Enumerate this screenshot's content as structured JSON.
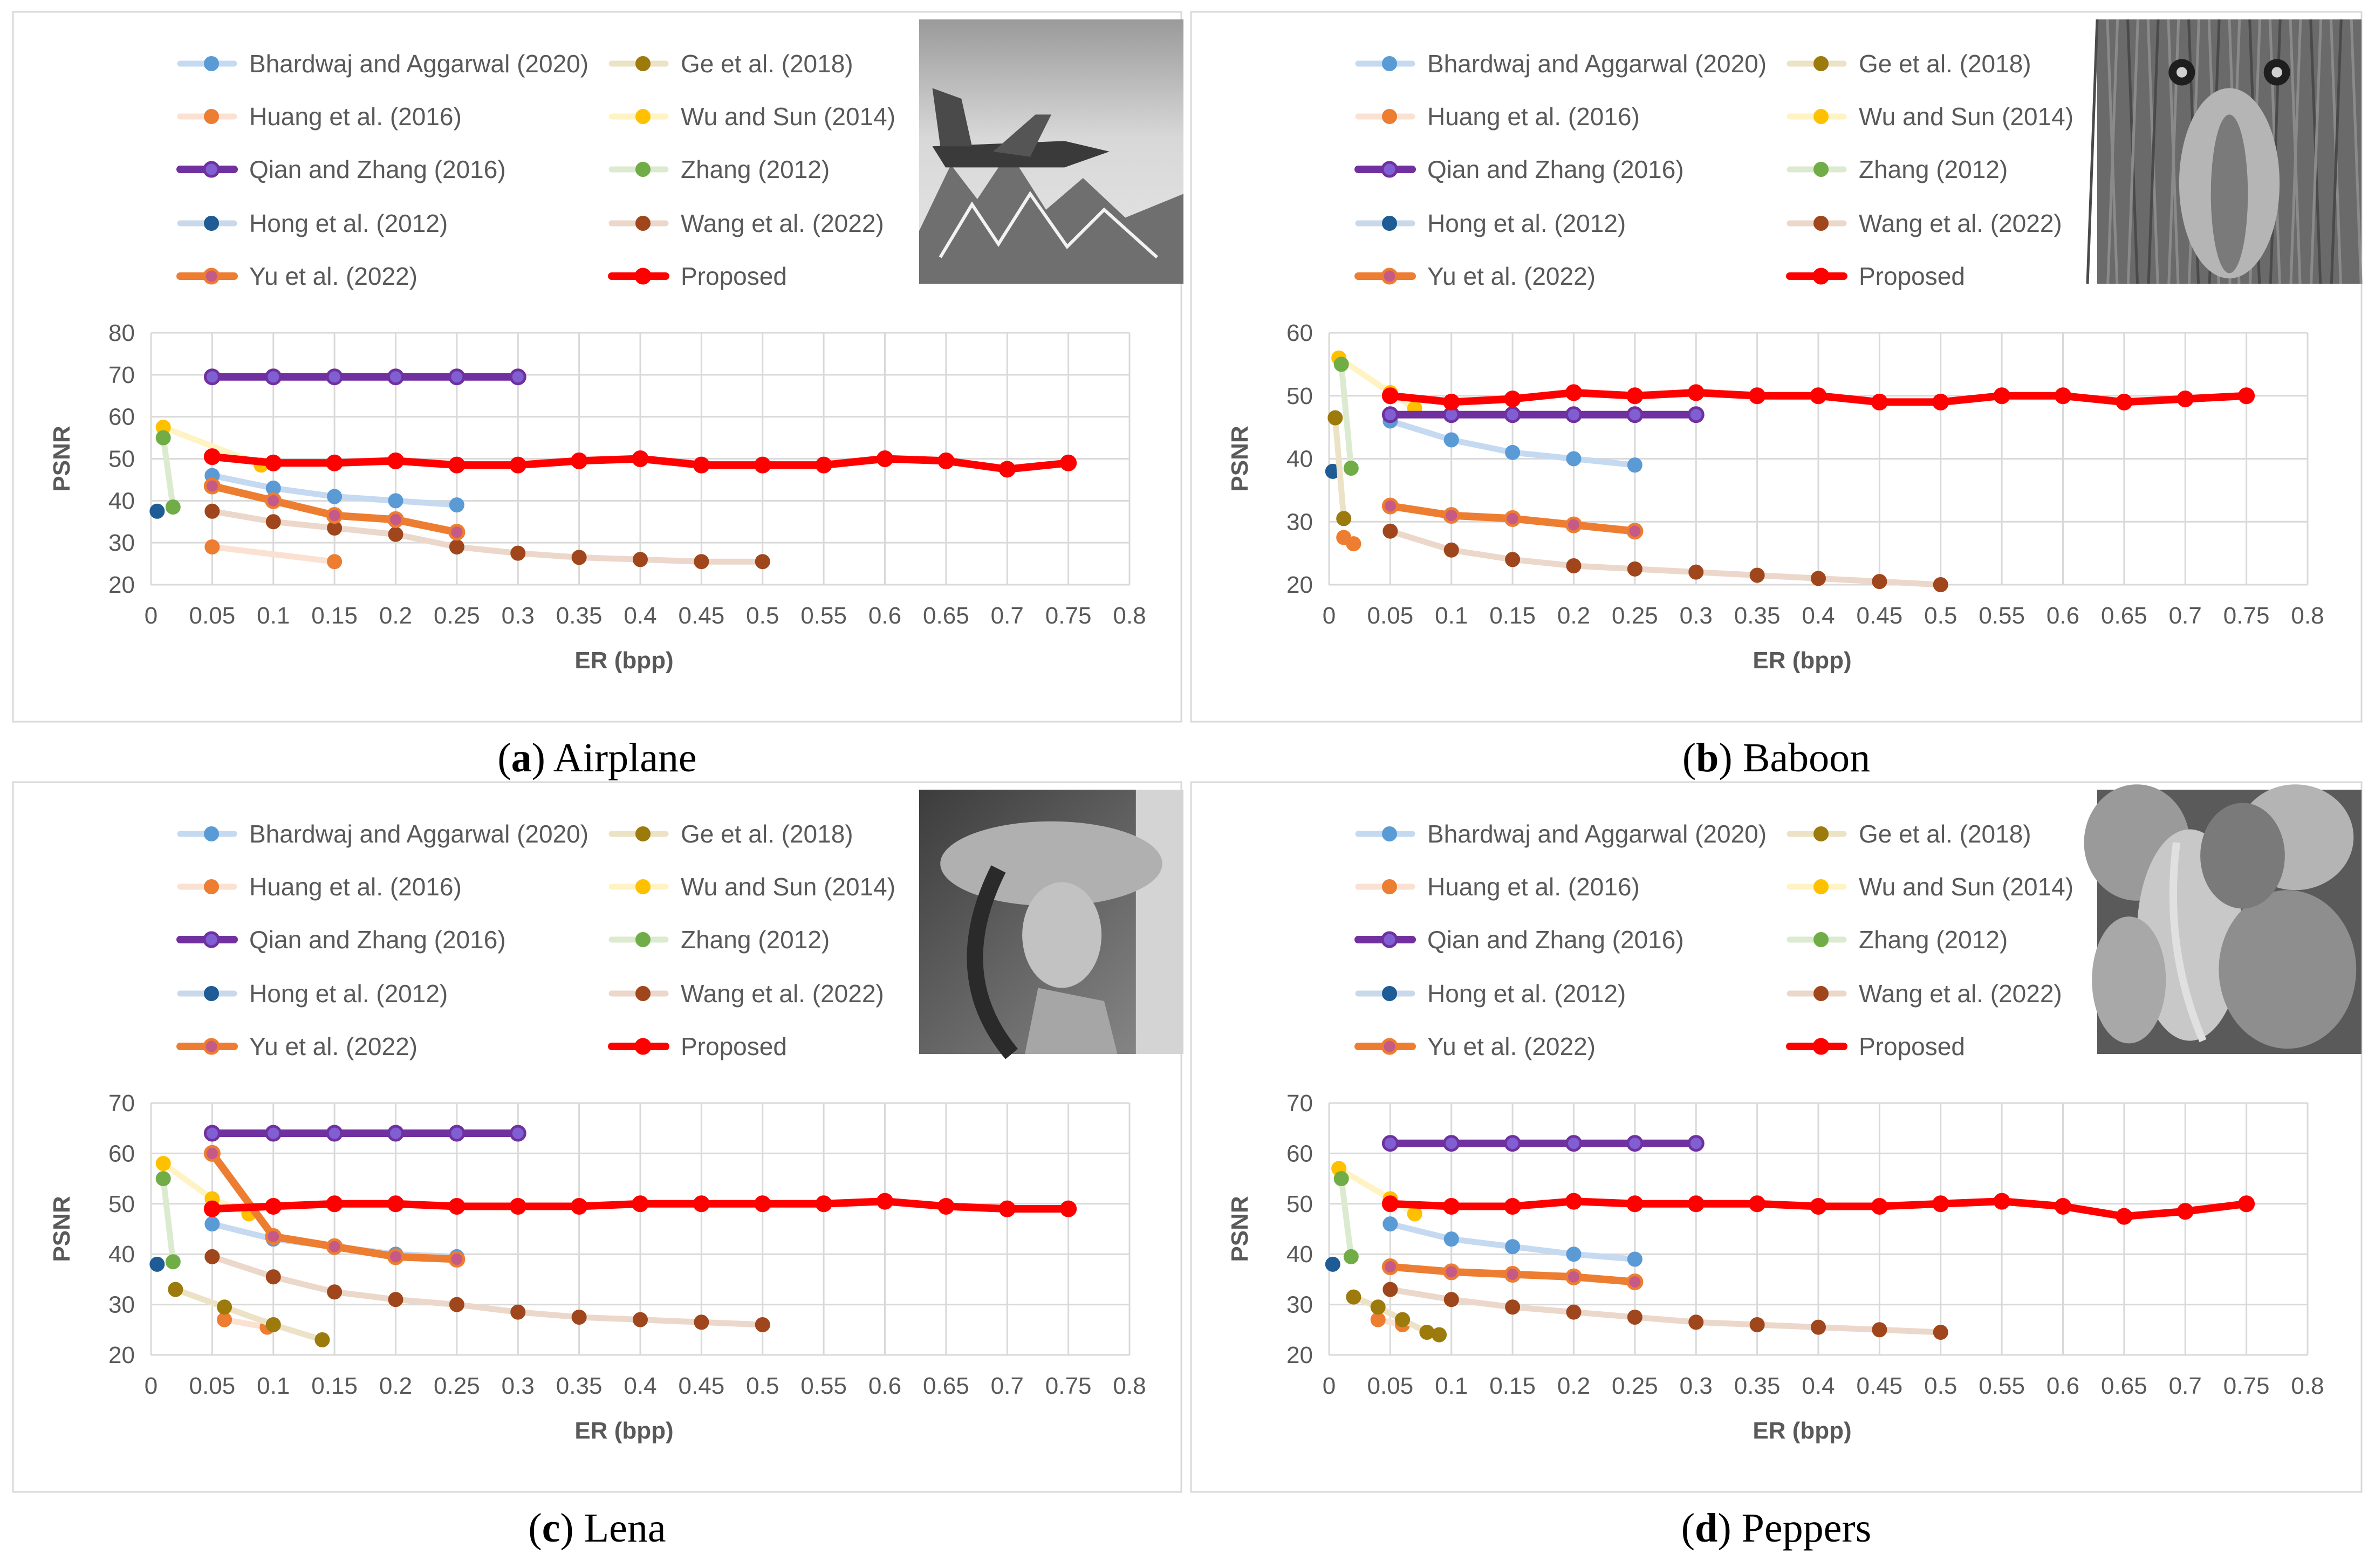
{
  "chart_data": [
    {
      "type": "line",
      "caption_label": "a",
      "caption_text": "Airplane",
      "thumbnail": "airplane-image",
      "xlabel": "ER (bpp)",
      "ylabel": "PSNR",
      "xlim": [
        0,
        0.8
      ],
      "ylim": [
        20,
        80
      ],
      "x_ticks": [
        "0",
        "0.05",
        "0.1",
        "0.15",
        "0.2",
        "0.25",
        "0.3",
        "0.35",
        "0.4",
        "0.45",
        "0.5",
        "0.55",
        "0.6",
        "0.65",
        "0.7",
        "0.75",
        "0.8"
      ],
      "y_ticks": [
        "20",
        "30",
        "40",
        "50",
        "60",
        "70",
        "80"
      ],
      "series": [
        {
          "name": "Bhardwaj and Aggarwal (2020)",
          "x": [
            0.05,
            0.1,
            0.15,
            0.2,
            0.25
          ],
          "y": [
            46,
            43,
            41,
            40,
            39
          ]
        },
        {
          "name": "Huang et al. (2016)",
          "x": [
            0.05,
            0.15
          ],
          "y": [
            29,
            25.5
          ]
        },
        {
          "name": "Qian and Zhang (2016)",
          "x": [
            0.05,
            0.1,
            0.15,
            0.2,
            0.25,
            0.3
          ],
          "y": [
            69.5,
            69.5,
            69.5,
            69.5,
            69.5,
            69.5
          ]
        },
        {
          "name": "Hong et al. (2012)",
          "x": [
            0.005
          ],
          "y": [
            37.5
          ]
        },
        {
          "name": "Yu et al. (2022)",
          "x": [
            0.05,
            0.1,
            0.15,
            0.2,
            0.25
          ],
          "y": [
            43.5,
            40,
            36.5,
            35.5,
            32.5
          ]
        },
        {
          "name": "Ge et al. (2018)",
          "x": [],
          "y": []
        },
        {
          "name": "Wu and Sun (2014)",
          "x": [
            0.01,
            0.09
          ],
          "y": [
            57.5,
            48.5
          ]
        },
        {
          "name": "Zhang (2012)",
          "x": [
            0.01,
            0.018
          ],
          "y": [
            55,
            38.5
          ]
        },
        {
          "name": "Wang et al. (2022)",
          "x": [
            0.05,
            0.1,
            0.15,
            0.2,
            0.25,
            0.3,
            0.35,
            0.4,
            0.45,
            0.5
          ],
          "y": [
            37.5,
            35,
            33.5,
            32,
            29,
            27.5,
            26.5,
            26,
            25.5,
            25.5
          ]
        },
        {
          "name": "Proposed",
          "x": [
            0.05,
            0.1,
            0.15,
            0.2,
            0.25,
            0.3,
            0.35,
            0.4,
            0.45,
            0.5,
            0.55,
            0.6,
            0.65,
            0.7,
            0.75
          ],
          "y": [
            50.5,
            49,
            49,
            49.5,
            48.5,
            48.5,
            49.5,
            50,
            48.5,
            48.5,
            48.5,
            50,
            49.5,
            47.5,
            49
          ]
        }
      ]
    },
    {
      "type": "line",
      "caption_label": "b",
      "caption_text": "Baboon",
      "thumbnail": "baboon-image",
      "xlabel": "ER (bpp)",
      "ylabel": "PSNR",
      "xlim": [
        0,
        0.8
      ],
      "ylim": [
        20,
        60
      ],
      "x_ticks": [
        "0",
        "0.05",
        "0.1",
        "0.15",
        "0.2",
        "0.25",
        "0.3",
        "0.35",
        "0.4",
        "0.45",
        "0.5",
        "0.55",
        "0.6",
        "0.65",
        "0.7",
        "0.75",
        "0.8"
      ],
      "y_ticks": [
        "20",
        "30",
        "40",
        "50",
        "60"
      ],
      "series": [
        {
          "name": "Bhardwaj and Aggarwal (2020)",
          "x": [
            0.05,
            0.1,
            0.15,
            0.2,
            0.25
          ],
          "y": [
            46,
            43,
            41,
            40,
            39
          ]
        },
        {
          "name": "Huang et al. (2016)",
          "x": [
            0.012,
            0.02
          ],
          "y": [
            27.5,
            26.5
          ]
        },
        {
          "name": "Qian and Zhang (2016)",
          "x": [
            0.05,
            0.1,
            0.15,
            0.2,
            0.25,
            0.3
          ],
          "y": [
            47,
            47,
            47,
            47,
            47,
            47
          ]
        },
        {
          "name": "Hong et al. (2012)",
          "x": [
            0.003
          ],
          "y": [
            38
          ]
        },
        {
          "name": "Yu et al. (2022)",
          "x": [
            0.05,
            0.1,
            0.15,
            0.2,
            0.25
          ],
          "y": [
            32.5,
            31,
            30.5,
            29.5,
            28.5
          ]
        },
        {
          "name": "Ge et al. (2018)",
          "x": [
            0.005,
            0.012
          ],
          "y": [
            46.5,
            30.5
          ]
        },
        {
          "name": "Wu and Sun (2014)",
          "x": [
            0.008,
            0.05,
            0.07
          ],
          "y": [
            56,
            50.5,
            48
          ]
        },
        {
          "name": "Zhang (2012)",
          "x": [
            0.01,
            0.018
          ],
          "y": [
            55,
            38.5
          ]
        },
        {
          "name": "Wang et al. (2022)",
          "x": [
            0.05,
            0.1,
            0.15,
            0.2,
            0.25,
            0.3,
            0.35,
            0.4,
            0.45,
            0.5
          ],
          "y": [
            28.5,
            25.5,
            24,
            23,
            22.5,
            22,
            21.5,
            21,
            20.5,
            20
          ]
        },
        {
          "name": "Proposed",
          "x": [
            0.05,
            0.1,
            0.15,
            0.2,
            0.25,
            0.3,
            0.35,
            0.4,
            0.45,
            0.5,
            0.55,
            0.6,
            0.65,
            0.7,
            0.75
          ],
          "y": [
            50,
            49,
            49.5,
            50.5,
            50,
            50.5,
            50,
            50,
            49,
            49,
            50,
            50,
            49,
            49.5,
            50
          ]
        }
      ]
    },
    {
      "type": "line",
      "caption_label": "c",
      "caption_text": "Lena",
      "thumbnail": "lena-image",
      "xlabel": "ER (bpp)",
      "ylabel": "PSNR",
      "xlim": [
        0,
        0.8
      ],
      "ylim": [
        20,
        70
      ],
      "x_ticks": [
        "0",
        "0.05",
        "0.1",
        "0.15",
        "0.2",
        "0.25",
        "0.3",
        "0.35",
        "0.4",
        "0.45",
        "0.5",
        "0.55",
        "0.6",
        "0.65",
        "0.7",
        "0.75",
        "0.8"
      ],
      "y_ticks": [
        "20",
        "30",
        "40",
        "50",
        "60",
        "70"
      ],
      "series": [
        {
          "name": "Bhardwaj and Aggarwal (2020)",
          "x": [
            0.05,
            0.1,
            0.15,
            0.2,
            0.25
          ],
          "y": [
            46,
            43,
            41.5,
            40,
            39.5
          ]
        },
        {
          "name": "Huang et al. (2016)",
          "x": [
            0.06,
            0.095
          ],
          "y": [
            27,
            25.5
          ]
        },
        {
          "name": "Qian and Zhang (2016)",
          "x": [
            0.05,
            0.1,
            0.15,
            0.2,
            0.25,
            0.3
          ],
          "y": [
            64,
            64,
            64,
            64,
            64,
            64
          ]
        },
        {
          "name": "Hong et al. (2012)",
          "x": [
            0.005
          ],
          "y": [
            38
          ]
        },
        {
          "name": "Yu et al. (2022)",
          "x": [
            0.05,
            0.1,
            0.15,
            0.2,
            0.25
          ],
          "y": [
            60,
            43.5,
            41.5,
            39.5,
            39
          ]
        },
        {
          "name": "Ge et al. (2018)",
          "x": [
            0.02,
            0.06,
            0.1,
            0.14
          ],
          "y": [
            33,
            29.5,
            26,
            23
          ]
        },
        {
          "name": "Wu and Sun (2014)",
          "x": [
            0.01,
            0.05,
            0.08
          ],
          "y": [
            58,
            51,
            48
          ]
        },
        {
          "name": "Zhang (2012)",
          "x": [
            0.01,
            0.018
          ],
          "y": [
            55,
            38.5
          ]
        },
        {
          "name": "Wang et al. (2022)",
          "x": [
            0.05,
            0.1,
            0.15,
            0.2,
            0.25,
            0.3,
            0.35,
            0.4,
            0.45,
            0.5
          ],
          "y": [
            39.5,
            35.5,
            32.5,
            31,
            30,
            28.5,
            27.5,
            27,
            26.5,
            26
          ]
        },
        {
          "name": "Proposed",
          "x": [
            0.05,
            0.1,
            0.15,
            0.2,
            0.25,
            0.3,
            0.35,
            0.4,
            0.45,
            0.5,
            0.55,
            0.6,
            0.65,
            0.7,
            0.75
          ],
          "y": [
            49,
            49.5,
            50,
            50,
            49.5,
            49.5,
            49.5,
            50,
            50,
            50,
            50,
            50.5,
            49.5,
            49,
            49
          ]
        }
      ]
    },
    {
      "type": "line",
      "caption_label": "d",
      "caption_text": "Peppers",
      "thumbnail": "peppers-image",
      "xlabel": "ER (bpp)",
      "ylabel": "PSNR",
      "xlim": [
        0,
        0.8
      ],
      "ylim": [
        20,
        70
      ],
      "x_ticks": [
        "0",
        "0.05",
        "0.1",
        "0.15",
        "0.2",
        "0.25",
        "0.3",
        "0.35",
        "0.4",
        "0.45",
        "0.5",
        "0.55",
        "0.6",
        "0.65",
        "0.7",
        "0.75",
        "0.8"
      ],
      "y_ticks": [
        "20",
        "30",
        "40",
        "50",
        "60",
        "70"
      ],
      "series": [
        {
          "name": "Bhardwaj and Aggarwal (2020)",
          "x": [
            0.05,
            0.1,
            0.15,
            0.2,
            0.25
          ],
          "y": [
            46,
            43,
            41.5,
            40,
            39
          ]
        },
        {
          "name": "Huang et al. (2016)",
          "x": [
            0.04,
            0.06
          ],
          "y": [
            27,
            26
          ]
        },
        {
          "name": "Qian and Zhang (2016)",
          "x": [
            0.05,
            0.1,
            0.15,
            0.2,
            0.25,
            0.3
          ],
          "y": [
            62,
            62,
            62,
            62,
            62,
            62
          ]
        },
        {
          "name": "Hong et al. (2012)",
          "x": [
            0.003
          ],
          "y": [
            38
          ]
        },
        {
          "name": "Yu et al. (2022)",
          "x": [
            0.05,
            0.1,
            0.15,
            0.2,
            0.25
          ],
          "y": [
            37.5,
            36.5,
            36,
            35.5,
            34.5
          ]
        },
        {
          "name": "Ge et al. (2018)",
          "x": [
            0.02,
            0.04,
            0.06,
            0.08,
            0.09
          ],
          "y": [
            31.5,
            29.5,
            27,
            24.5,
            24
          ]
        },
        {
          "name": "Wu and Sun (2014)",
          "x": [
            0.008,
            0.05,
            0.07
          ],
          "y": [
            57,
            51,
            48
          ]
        },
        {
          "name": "Zhang (2012)",
          "x": [
            0.01,
            0.018
          ],
          "y": [
            55,
            39.5
          ]
        },
        {
          "name": "Wang et al. (2022)",
          "x": [
            0.05,
            0.1,
            0.15,
            0.2,
            0.25,
            0.3,
            0.35,
            0.4,
            0.45,
            0.5
          ],
          "y": [
            33,
            31,
            29.5,
            28.5,
            27.5,
            26.5,
            26,
            25.5,
            25,
            24.5
          ]
        },
        {
          "name": "Proposed",
          "x": [
            0.05,
            0.1,
            0.15,
            0.2,
            0.25,
            0.3,
            0.35,
            0.4,
            0.45,
            0.5,
            0.55,
            0.6,
            0.65,
            0.7,
            0.75
          ],
          "y": [
            50,
            49.5,
            49.5,
            50.5,
            50,
            50,
            50,
            49.5,
            49.5,
            50,
            50.5,
            49.5,
            47.5,
            48.5,
            50
          ]
        }
      ]
    }
  ],
  "series_styles": [
    {
      "name": "Bhardwaj and Aggarwal (2020)",
      "line": "#c5d9f1",
      "marker": "#5b9bd5",
      "markerStroke": "#5b9bd5",
      "width": "light"
    },
    {
      "name": "Huang et al. (2016)",
      "line": "#fbe1d2",
      "marker": "#ed7d31",
      "markerStroke": "#ed7d31",
      "width": "light"
    },
    {
      "name": "Qian and Zhang (2016)",
      "line": "#7030a0",
      "marker": "#7f5fd1",
      "markerStroke": "#7030a0",
      "width": "bold"
    },
    {
      "name": "Hong et al. (2012)",
      "line": "#c9d9ea",
      "marker": "#1f5b94",
      "markerStroke": "#1f5b94",
      "width": "light"
    },
    {
      "name": "Yu et al. (2022)",
      "line": "#ed7d31",
      "marker": "#c55a86",
      "markerStroke": "#ed7d31",
      "width": "bold"
    },
    {
      "name": "Ge et al. (2018)",
      "line": "#ece2c6",
      "marker": "#9c7a0c",
      "markerStroke": "#9c7a0c",
      "width": "light"
    },
    {
      "name": "Wu and Sun (2014)",
      "line": "#fff3c4",
      "marker": "#ffc000",
      "markerStroke": "#ffc000",
      "width": "light"
    },
    {
      "name": "Zhang (2012)",
      "line": "#dcebd0",
      "marker": "#70ad47",
      "markerStroke": "#70ad47",
      "width": "light"
    },
    {
      "name": "Wang et al. (2022)",
      "line": "#ecd7cb",
      "marker": "#a0461c",
      "markerStroke": "#a0461c",
      "width": "light"
    },
    {
      "name": "Proposed",
      "line": "#ff0000",
      "marker": "#ff0000",
      "markerStroke": "#ff0000",
      "width": "bold"
    }
  ]
}
